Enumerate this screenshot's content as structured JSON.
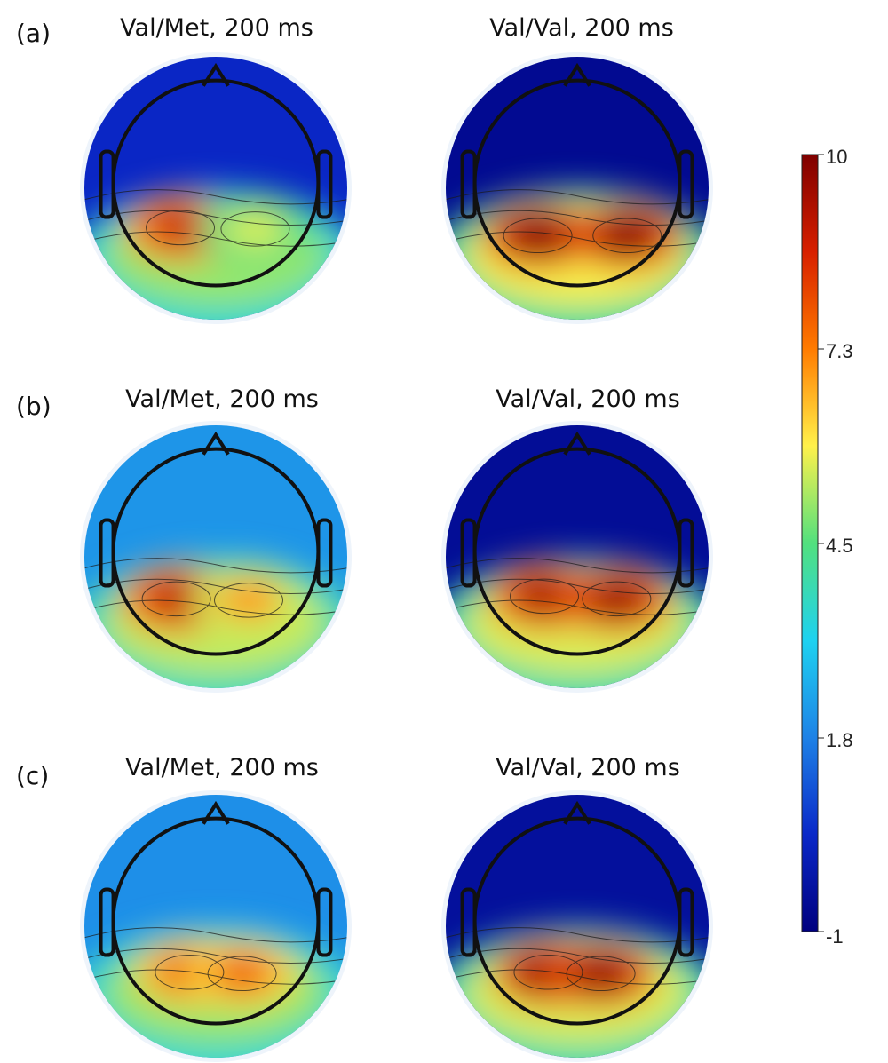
{
  "rows": [
    {
      "label": "(a)",
      "maps": [
        {
          "title": "Val/Met, 200 ms",
          "hot": [
            {
              "dx": -0.27,
              "dy": 0.3,
              "level": 0.9
            },
            {
              "dx": 0.3,
              "dy": 0.31,
              "level": 0.6
            }
          ],
          "frontal": 0.12,
          "band": 0.55
        },
        {
          "title": "Val/Val, 200 ms",
          "hot": [
            {
              "dx": -0.3,
              "dy": 0.36,
              "level": 1.0
            },
            {
              "dx": 0.38,
              "dy": 0.36,
              "level": 1.0
            }
          ],
          "frontal": 0.03,
          "band": 0.62
        }
      ]
    },
    {
      "label": "(b)",
      "maps": [
        {
          "title": "Val/Met, 200 ms",
          "hot": [
            {
              "dx": -0.3,
              "dy": 0.32,
              "level": 0.92
            },
            {
              "dx": 0.25,
              "dy": 0.33,
              "level": 0.72
            }
          ],
          "frontal": 0.28,
          "band": 0.58
        },
        {
          "title": "Val/Val, 200 ms",
          "hot": [
            {
              "dx": -0.25,
              "dy": 0.3,
              "level": 0.95
            },
            {
              "dx": 0.3,
              "dy": 0.32,
              "level": 0.97
            }
          ],
          "frontal": 0.04,
          "band": 0.6
        }
      ]
    },
    {
      "label": "(c)",
      "maps": [
        {
          "title": "Val/Met, 200 ms",
          "hot": [
            {
              "dx": -0.2,
              "dy": 0.35,
              "level": 0.82
            },
            {
              "dx": 0.2,
              "dy": 0.36,
              "level": 0.8
            }
          ],
          "frontal": 0.27,
          "band": 0.55
        },
        {
          "title": "Val/Val, 200 ms",
          "hot": [
            {
              "dx": -0.22,
              "dy": 0.35,
              "level": 1.0
            },
            {
              "dx": 0.18,
              "dy": 0.36,
              "level": 0.98
            }
          ],
          "frontal": 0.05,
          "band": 0.6
        }
      ]
    }
  ],
  "colorbar": {
    "ticks": [
      "10",
      "7.3",
      "4.5",
      "1.8",
      "-1"
    ],
    "colors": [
      "#7f0000",
      "#d71f00",
      "#ff7b00",
      "#fff14a",
      "#52e07e",
      "#1ed2f0",
      "#1e82e6",
      "#0a28c8",
      "#00007f"
    ]
  }
}
